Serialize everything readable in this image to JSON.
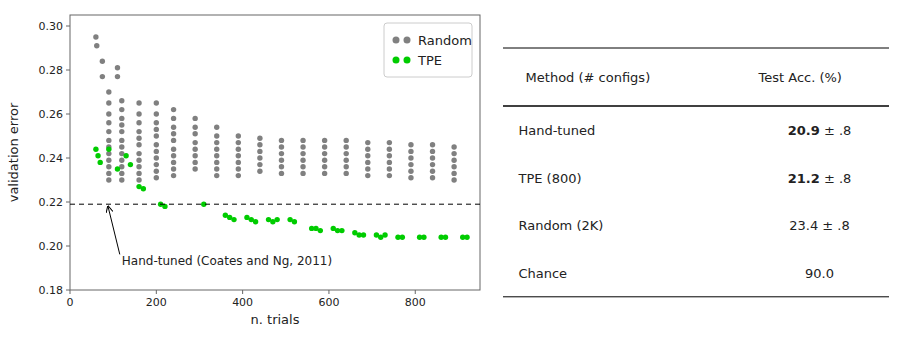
{
  "chart_data": [
    {
      "type": "scatter",
      "xlabel": "n. trials",
      "ylabel": "validation error",
      "xlim": [
        0,
        950
      ],
      "ylim": [
        0.18,
        0.305
      ],
      "xticks": [
        0,
        200,
        400,
        600,
        800
      ],
      "yticks": [
        0.18,
        {
          "value": 0.2,
          "label": "0.20"
        },
        0.22,
        0.24,
        0.26,
        0.28,
        {
          "value": 0.3,
          "label": "0.30"
        }
      ],
      "grid": false,
      "legend": "upper right",
      "series": [
        {
          "name": "Random",
          "color": "#808080",
          "marker": "circle",
          "x": [
            60,
            62,
            75,
            75,
            90,
            90,
            90,
            90,
            90,
            90,
            90,
            90,
            90,
            90,
            90,
            90,
            110,
            110,
            120,
            120,
            120,
            120,
            120,
            120,
            120,
            120,
            120,
            120,
            120,
            120,
            160,
            160,
            160,
            160,
            160,
            160,
            160,
            160,
            160,
            160,
            160,
            200,
            200,
            200,
            200,
            200,
            200,
            200,
            200,
            200,
            200,
            200,
            240,
            240,
            240,
            240,
            240,
            240,
            240,
            240,
            240,
            240,
            290,
            290,
            290,
            290,
            290,
            290,
            290,
            290,
            340,
            340,
            340,
            340,
            340,
            340,
            340,
            340,
            390,
            390,
            390,
            390,
            390,
            390,
            390,
            440,
            440,
            440,
            440,
            440,
            440,
            490,
            490,
            490,
            490,
            490,
            490,
            540,
            540,
            540,
            540,
            540,
            540,
            590,
            590,
            590,
            590,
            590,
            590,
            640,
            640,
            640,
            640,
            640,
            640,
            690,
            690,
            690,
            690,
            690,
            690,
            740,
            740,
            740,
            740,
            740,
            740,
            790,
            790,
            790,
            790,
            790,
            790,
            840,
            840,
            840,
            840,
            840,
            840,
            890,
            890,
            890,
            890,
            890,
            890
          ],
          "values": [
            0.295,
            0.291,
            0.284,
            0.277,
            0.27,
            0.265,
            0.26,
            0.256,
            0.252,
            0.248,
            0.245,
            0.242,
            0.239,
            0.236,
            0.233,
            0.23,
            0.281,
            0.277,
            0.266,
            0.262,
            0.258,
            0.255,
            0.252,
            0.248,
            0.245,
            0.242,
            0.239,
            0.236,
            0.233,
            0.23,
            0.265,
            0.26,
            0.256,
            0.252,
            0.249,
            0.246,
            0.242,
            0.239,
            0.236,
            0.233,
            0.23,
            0.265,
            0.26,
            0.256,
            0.253,
            0.25,
            0.246,
            0.243,
            0.24,
            0.237,
            0.234,
            0.231,
            0.262,
            0.258,
            0.254,
            0.251,
            0.248,
            0.244,
            0.241,
            0.238,
            0.235,
            0.232,
            0.258,
            0.254,
            0.251,
            0.247,
            0.244,
            0.241,
            0.238,
            0.235,
            0.254,
            0.25,
            0.247,
            0.244,
            0.241,
            0.238,
            0.235,
            0.232,
            0.25,
            0.247,
            0.244,
            0.241,
            0.238,
            0.235,
            0.232,
            0.249,
            0.246,
            0.243,
            0.24,
            0.237,
            0.234,
            0.248,
            0.245,
            0.242,
            0.239,
            0.236,
            0.233,
            0.248,
            0.245,
            0.242,
            0.239,
            0.236,
            0.233,
            0.248,
            0.245,
            0.242,
            0.239,
            0.236,
            0.233,
            0.248,
            0.245,
            0.242,
            0.239,
            0.236,
            0.233,
            0.247,
            0.244,
            0.241,
            0.238,
            0.235,
            0.232,
            0.247,
            0.244,
            0.241,
            0.238,
            0.235,
            0.232,
            0.246,
            0.243,
            0.24,
            0.237,
            0.234,
            0.231,
            0.246,
            0.243,
            0.24,
            0.237,
            0.234,
            0.231,
            0.245,
            0.242,
            0.239,
            0.236,
            0.233,
            0.23
          ]
        },
        {
          "name": "TPE",
          "color": "#00cc00",
          "marker": "circle",
          "x": [
            60,
            65,
            70,
            90,
            110,
            130,
            140,
            160,
            170,
            210,
            220,
            310,
            360,
            370,
            380,
            410,
            420,
            430,
            460,
            470,
            480,
            510,
            520,
            560,
            570,
            580,
            610,
            620,
            630,
            660,
            670,
            680,
            710,
            720,
            730,
            760,
            770,
            810,
            820,
            860,
            870,
            910,
            920
          ],
          "values": [
            0.244,
            0.241,
            0.238,
            0.244,
            0.235,
            0.241,
            0.237,
            0.227,
            0.226,
            0.219,
            0.218,
            0.219,
            0.214,
            0.213,
            0.212,
            0.213,
            0.212,
            0.211,
            0.212,
            0.211,
            0.212,
            0.212,
            0.211,
            0.208,
            0.208,
            0.207,
            0.208,
            0.207,
            0.207,
            0.206,
            0.205,
            0.205,
            0.205,
            0.204,
            0.205,
            0.204,
            0.204,
            0.204,
            0.204,
            0.204,
            0.204,
            0.204,
            0.204
          ]
        }
      ],
      "reference_lines": [
        {
          "y": 0.219,
          "color": "#000000",
          "line_style": "dashed"
        }
      ],
      "annotations": [
        {
          "text": "Hand-tuned (Coates and Ng, 2011)",
          "x": 88,
          "y": 0.219,
          "text_x": 120,
          "text_y": 0.193
        }
      ]
    },
    {
      "type": "table",
      "columns": [
        "Method (# configs)",
        "Test Acc. (%)"
      ],
      "rows": [
        [
          "Hand-tuned",
          "20.9 ± .8"
        ],
        [
          "TPE (800)",
          "21.2 ± .8"
        ],
        [
          "Random (2K)",
          "23.4 ± .8"
        ],
        [
          "Chance",
          "90.0"
        ]
      ],
      "bold": [
        true,
        true,
        false,
        false
      ]
    }
  ]
}
